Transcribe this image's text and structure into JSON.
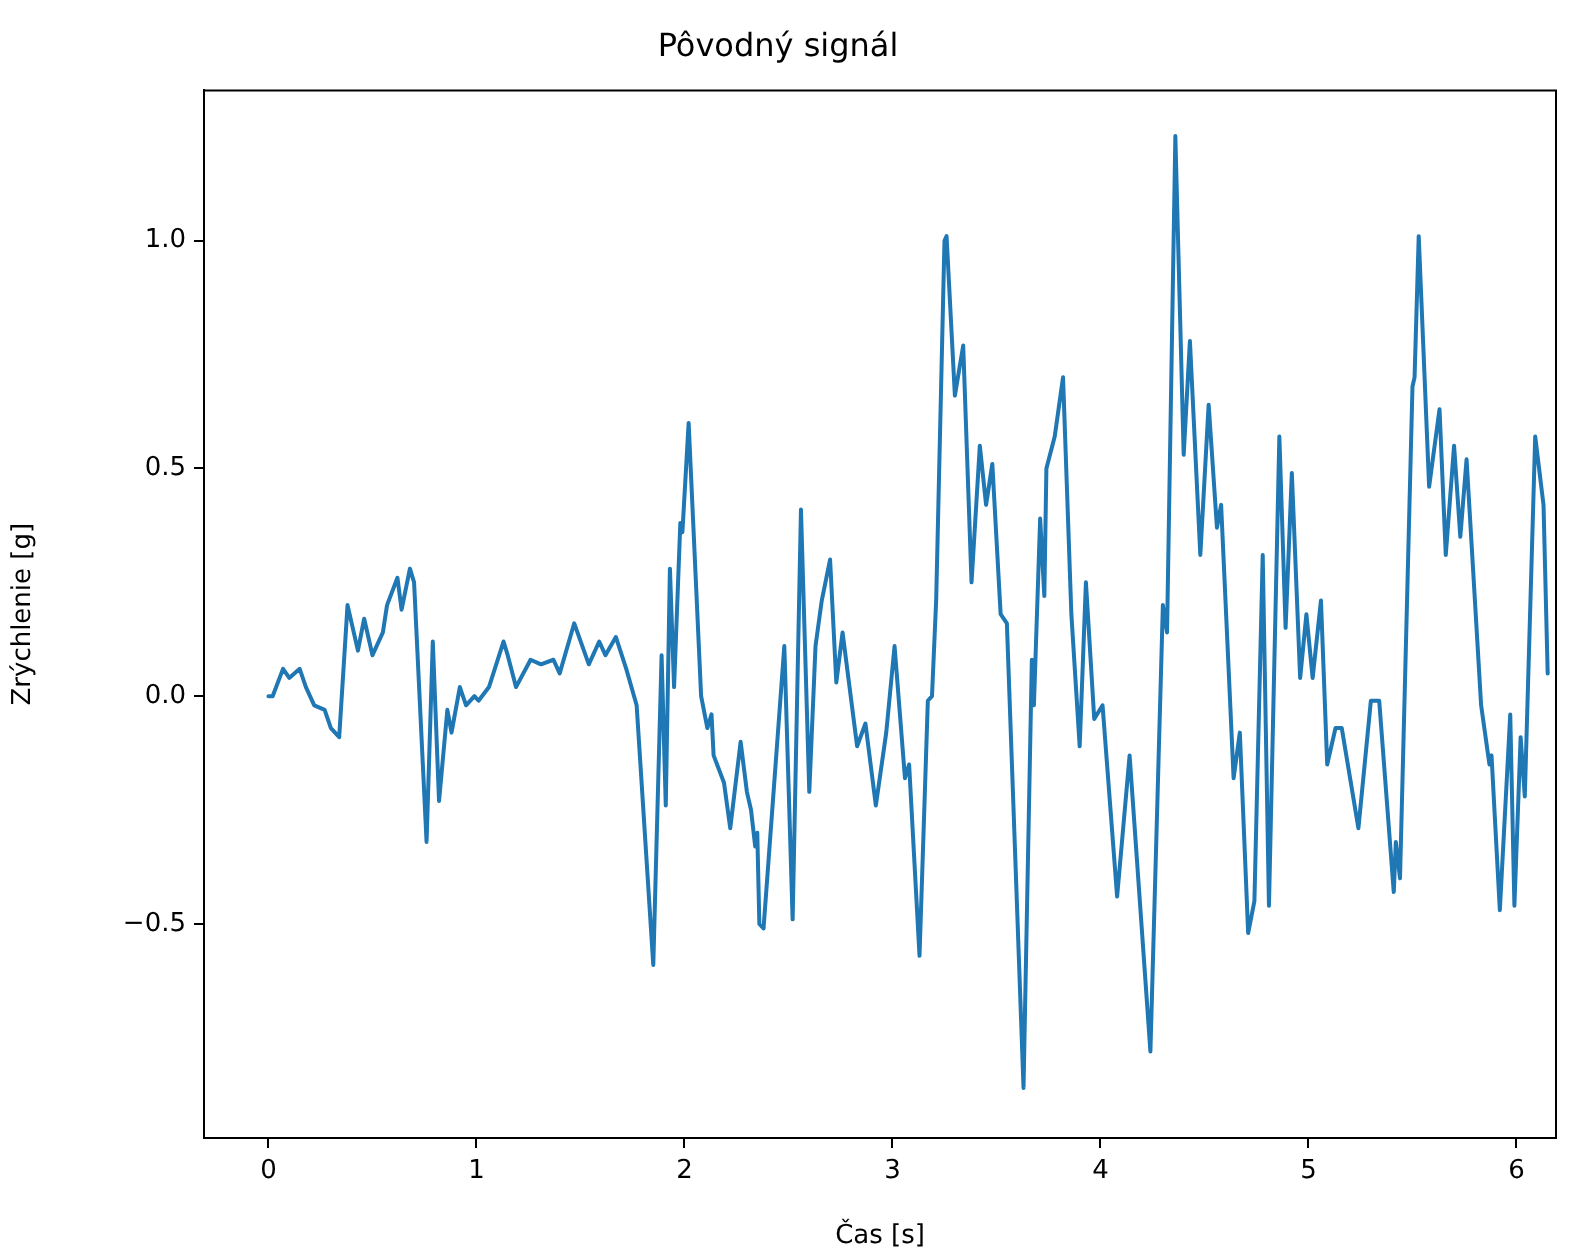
{
  "chart_data": {
    "type": "line",
    "title": "Pôvodný signál",
    "xlabel": "Čas [s]",
    "ylabel": "Zrýchlenie [g]",
    "xlim": [
      -0.31,
      6.19
    ],
    "ylim": [
      -0.97,
      1.33
    ],
    "xticks": [
      0,
      1,
      2,
      3,
      4,
      5,
      6
    ],
    "yticks": [
      {
        "value": -0.5,
        "label": "−0.5"
      },
      {
        "value": 0,
        "label": "0.0"
      },
      {
        "value": 0.5,
        "label": "0.5"
      },
      {
        "value": 1,
        "label": "1.0"
      }
    ],
    "grid": false,
    "legend": false,
    "marker": "none",
    "line_style": "solid",
    "series": [
      {
        "color": "#1f77b4",
        "x": [
          0,
          0.02,
          0.07,
          0.1,
          0.15,
          0.18,
          0.22,
          0.27,
          0.3,
          0.34,
          0.38,
          0.41,
          0.43,
          0.46,
          0.5,
          0.55,
          0.57,
          0.62,
          0.64,
          0.68,
          0.7,
          0.76,
          0.79,
          0.82,
          0.86,
          0.88,
          0.92,
          0.95,
          0.99,
          1.01,
          1.06,
          1.13,
          1.15,
          1.19,
          1.26,
          1.31,
          1.37,
          1.4,
          1.47,
          1.54,
          1.59,
          1.62,
          1.67,
          1.72,
          1.77,
          1.85,
          1.89,
          1.91,
          1.93,
          1.95,
          1.98,
          1.99,
          2.02,
          2.08,
          2.11,
          2.13,
          2.14,
          2.19,
          2.22,
          2.27,
          2.3,
          2.32,
          2.34,
          2.35,
          2.36,
          2.38,
          2.48,
          2.52,
          2.56,
          2.6,
          2.63,
          2.66,
          2.7,
          2.73,
          2.76,
          2.83,
          2.87,
          2.92,
          2.97,
          3.01,
          3.06,
          3.08,
          3.13,
          3.17,
          3.19,
          3.21,
          3.25,
          3.26,
          3.3,
          3.34,
          3.38,
          3.42,
          3.45,
          3.48,
          3.52,
          3.55,
          3.63,
          3.67,
          3.68,
          3.71,
          3.73,
          3.74,
          3.78,
          3.82,
          3.86,
          3.9,
          3.93,
          3.97,
          4.01,
          4.08,
          4.14,
          4.24,
          4.3,
          4.32,
          4.36,
          4.4,
          4.43,
          4.48,
          4.52,
          4.56,
          4.58,
          4.64,
          4.67,
          4.71,
          4.74,
          4.78,
          4.81,
          4.86,
          4.89,
          4.92,
          4.96,
          4.99,
          5.02,
          5.06,
          5.09,
          5.13,
          5.16,
          5.2,
          5.24,
          5.3,
          5.34,
          5.41,
          5.42,
          5.44,
          5.5,
          5.51,
          5.53,
          5.58,
          5.63,
          5.66,
          5.7,
          5.73,
          5.76,
          5.83,
          5.87,
          5.88,
          5.92,
          5.97,
          5.99,
          6.02,
          6.04,
          6.09,
          6.13,
          6.15
        ],
        "values": [
          0,
          0,
          0.06,
          0.04,
          0.06,
          0.02,
          -0.02,
          -0.03,
          -0.07,
          -0.09,
          0.2,
          0.14,
          0.1,
          0.17,
          0.09,
          0.14,
          0.2,
          0.26,
          0.19,
          0.28,
          0.25,
          -0.32,
          0.12,
          -0.23,
          -0.03,
          -0.08,
          0.02,
          -0.02,
          0,
          -0.01,
          0.02,
          0.12,
          0.09,
          0.02,
          0.08,
          0.07,
          0.08,
          0.05,
          0.16,
          0.07,
          0.12,
          0.09,
          0.13,
          0.06,
          -0.02,
          -0.59,
          0.09,
          -0.24,
          0.28,
          0.02,
          0.38,
          0.36,
          0.6,
          0,
          -0.07,
          -0.04,
          -0.13,
          -0.19,
          -0.29,
          -0.1,
          -0.21,
          -0.25,
          -0.33,
          -0.3,
          -0.5,
          -0.51,
          0.11,
          -0.49,
          0.41,
          -0.21,
          0.11,
          0.21,
          0.3,
          0.03,
          0.14,
          -0.11,
          -0.06,
          -0.24,
          -0.08,
          0.11,
          -0.18,
          -0.15,
          -0.57,
          -0.01,
          0,
          0.21,
          1,
          1.01,
          0.66,
          0.77,
          0.25,
          0.55,
          0.42,
          0.51,
          0.18,
          0.16,
          -0.86,
          0.08,
          -0.02,
          0.39,
          0.22,
          0.5,
          0.57,
          0.7,
          0.18,
          -0.11,
          0.25,
          -0.05,
          -0.02,
          -0.44,
          -0.13,
          -0.78,
          0.2,
          0.14,
          1.23,
          0.53,
          0.78,
          0.31,
          0.64,
          0.37,
          0.42,
          -0.18,
          -0.08,
          -0.52,
          -0.45,
          0.31,
          -0.46,
          0.57,
          0.15,
          0.49,
          0.04,
          0.18,
          0.04,
          0.21,
          -0.15,
          -0.07,
          -0.07,
          -0.18,
          -0.29,
          -0.01,
          -0.01,
          -0.43,
          -0.32,
          -0.4,
          0.68,
          0.7,
          1.01,
          0.46,
          0.63,
          0.31,
          0.55,
          0.35,
          0.52,
          -0.02,
          -0.15,
          -0.13,
          -0.47,
          -0.04,
          -0.46,
          -0.09,
          -0.22,
          0.57,
          0.42,
          0.05
        ]
      }
    ]
  }
}
